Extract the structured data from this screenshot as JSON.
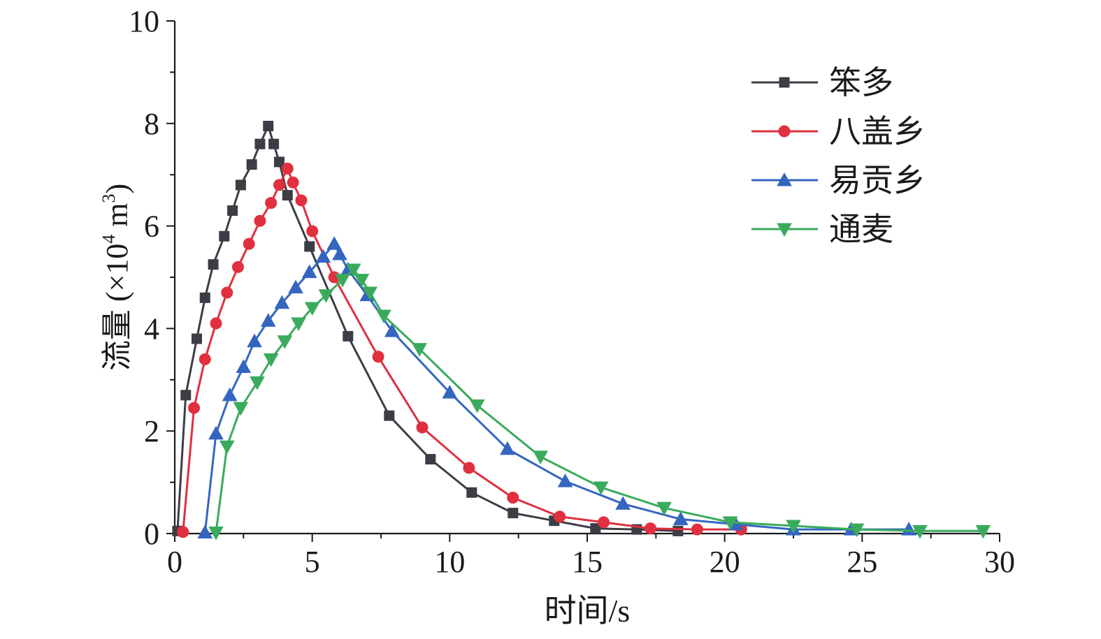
{
  "chart_data": {
    "type": "line",
    "xlabel": "时间/s",
    "ylabel": "流量 (×10⁴ m³)",
    "ylabel_parts": {
      "main": "流量 (×10",
      "exp1": "4",
      "mid": " m",
      "exp2": "3",
      "close": ")"
    },
    "xlim": [
      0,
      30
    ],
    "ylim": [
      0,
      10
    ],
    "xticks": [
      0,
      5,
      10,
      15,
      20,
      25,
      30
    ],
    "yticks": [
      0,
      2,
      4,
      6,
      8,
      10
    ],
    "legend_position": "top-right",
    "series": [
      {
        "name": "笨多",
        "color": "#3d3d45",
        "marker": "square",
        "x": [
          0.1,
          0.4,
          0.8,
          1.1,
          1.4,
          1.8,
          2.1,
          2.4,
          2.8,
          3.1,
          3.4,
          3.6,
          3.8,
          4.1,
          4.9,
          6.3,
          7.8,
          9.3,
          10.8,
          12.3,
          13.8,
          15.3,
          16.8,
          18.3
        ],
        "y": [
          0.05,
          2.7,
          3.8,
          4.6,
          5.25,
          5.8,
          6.3,
          6.8,
          7.2,
          7.6,
          7.95,
          7.6,
          7.25,
          6.6,
          5.6,
          3.85,
          2.3,
          1.45,
          0.8,
          0.4,
          0.25,
          0.1,
          0.08,
          0.05
        ]
      },
      {
        "name": "八盖乡",
        "color": "#e0303f",
        "marker": "circle",
        "x": [
          0.3,
          0.7,
          1.1,
          1.5,
          1.9,
          2.3,
          2.7,
          3.1,
          3.5,
          3.8,
          4.1,
          4.3,
          4.6,
          5.0,
          5.8,
          7.4,
          9.0,
          10.7,
          12.3,
          14.0,
          15.6,
          17.3,
          19.0,
          20.6
        ],
        "y": [
          0.03,
          2.45,
          3.4,
          4.1,
          4.7,
          5.2,
          5.65,
          6.1,
          6.45,
          6.8,
          7.12,
          6.85,
          6.5,
          5.9,
          5.0,
          3.45,
          2.07,
          1.28,
          0.7,
          0.33,
          0.22,
          0.1,
          0.08,
          0.08
        ]
      },
      {
        "name": "易贡乡",
        "color": "#3466c0",
        "marker": "triangle-up",
        "x": [
          1.1,
          1.5,
          2.0,
          2.5,
          2.9,
          3.4,
          3.9,
          4.4,
          4.9,
          5.4,
          5.8,
          6.0,
          6.3,
          7.0,
          7.9,
          10.0,
          12.1,
          14.2,
          16.3,
          18.4,
          20.4,
          22.5,
          24.6,
          26.7
        ],
        "y": [
          0.02,
          1.95,
          2.7,
          3.25,
          3.75,
          4.15,
          4.5,
          4.8,
          5.1,
          5.4,
          5.65,
          5.45,
          5.15,
          4.65,
          3.95,
          2.75,
          1.65,
          1.02,
          0.58,
          0.28,
          0.18,
          0.08,
          0.08,
          0.08
        ]
      },
      {
        "name": "通麦",
        "color": "#3aab5c",
        "marker": "triangle-down",
        "x": [
          1.5,
          1.9,
          2.4,
          3.0,
          3.5,
          4.0,
          4.5,
          5.0,
          5.5,
          6.1,
          6.5,
          6.8,
          7.1,
          7.6,
          8.9,
          11.0,
          13.3,
          15.5,
          17.8,
          20.2,
          22.5,
          24.8,
          27.1,
          29.4
        ],
        "y": [
          0.02,
          1.7,
          2.45,
          2.95,
          3.4,
          3.75,
          4.1,
          4.4,
          4.65,
          4.95,
          5.15,
          4.95,
          4.7,
          4.25,
          3.6,
          2.5,
          1.5,
          0.9,
          0.5,
          0.22,
          0.15,
          0.08,
          0.05,
          0.05
        ]
      }
    ]
  }
}
